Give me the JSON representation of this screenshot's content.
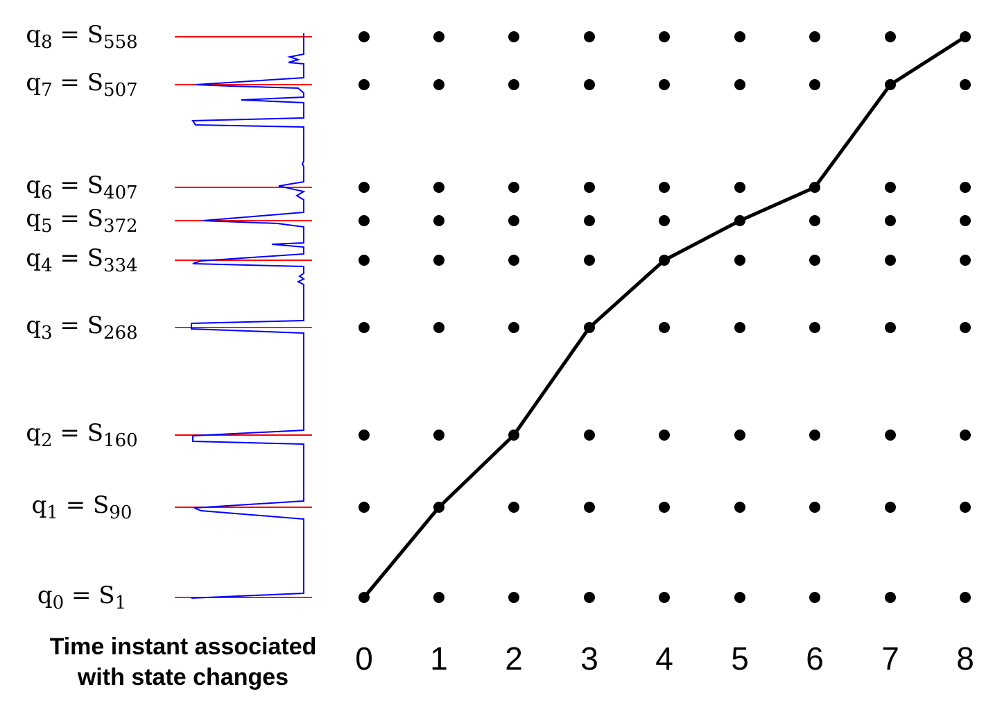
{
  "states": [
    {
      "q": "q",
      "q_sub": "0",
      "s": "S",
      "s_sub": "1"
    },
    {
      "q": "q",
      "q_sub": "1",
      "s": "S",
      "s_sub": "90"
    },
    {
      "q": "q",
      "q_sub": "2",
      "s": "S",
      "s_sub": "160"
    },
    {
      "q": "q",
      "q_sub": "3",
      "s": "S",
      "s_sub": "268"
    },
    {
      "q": "q",
      "q_sub": "4",
      "s": "S",
      "s_sub": "334"
    },
    {
      "q": "q",
      "q_sub": "5",
      "s": "S",
      "s_sub": "372"
    },
    {
      "q": "q",
      "q_sub": "6",
      "s": "S",
      "s_sub": "407"
    },
    {
      "q": "q",
      "q_sub": "7",
      "s": "S",
      "s_sub": "507"
    },
    {
      "q": "q",
      "q_sub": "8",
      "s": "S",
      "s_sub": "558"
    }
  ],
  "caption": {
    "line1": "Time instant associated",
    "line2": "with state changes"
  },
  "x_ticks": [
    "0",
    "1",
    "2",
    "3",
    "4",
    "5",
    "6",
    "7",
    "8"
  ],
  "path": [
    0,
    1,
    2,
    3,
    4,
    5,
    6,
    7,
    8
  ],
  "colors": {
    "marker_line": "#ff0000",
    "signal": "#0000ff",
    "dots": "#000000",
    "path": "#000000"
  }
}
